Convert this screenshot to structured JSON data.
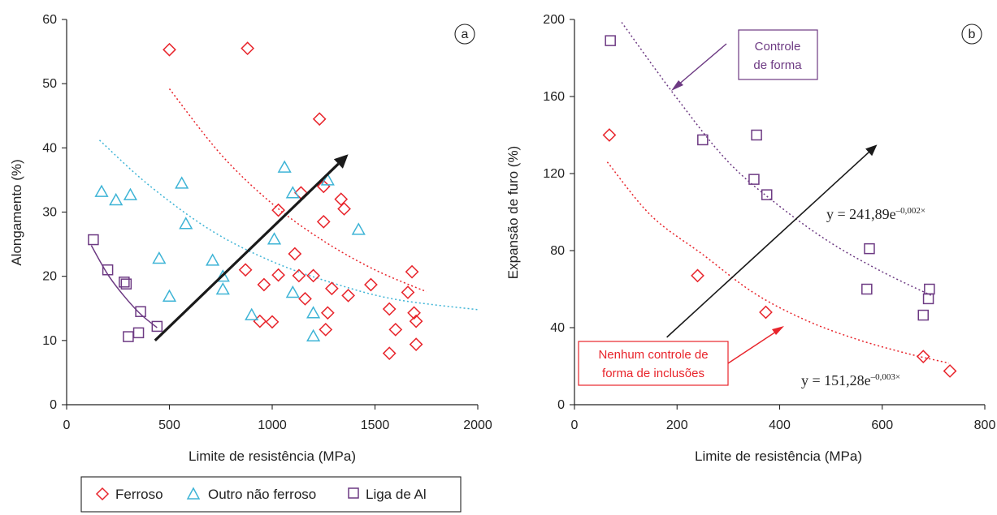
{
  "chart_data": [
    {
      "id": "a",
      "panel_label": "a",
      "type": "scatter",
      "xlabel": "Limite de resistência (MPa)",
      "ylabel": "Alongamento (%)",
      "xlim": [
        0,
        2000
      ],
      "ylim": [
        0,
        60
      ],
      "xticks": [
        0,
        500,
        1000,
        1500,
        2000
      ],
      "yticks": [
        0,
        10,
        20,
        30,
        40,
        50,
        60
      ],
      "series": [
        {
          "name": "Ferroso",
          "marker": "diamond",
          "color": "#e8242b",
          "points": [
            [
              500,
              55.3
            ],
            [
              880,
              55.5
            ],
            [
              1230,
              44.5
            ],
            [
              1140,
              33
            ],
            [
              1030,
              30.3
            ],
            [
              1250,
              34
            ],
            [
              1335,
              32
            ],
            [
              1350,
              30.5
            ],
            [
              1250,
              28.5
            ],
            [
              1110,
              23.5
            ],
            [
              870,
              21
            ],
            [
              960,
              18.7
            ],
            [
              1030,
              20.2
            ],
            [
              1130,
              20.1
            ],
            [
              1200,
              20.1
            ],
            [
              1160,
              16.5
            ],
            [
              1290,
              18.1
            ],
            [
              1370,
              17
            ],
            [
              1270,
              14.3
            ],
            [
              1480,
              18.7
            ],
            [
              1660,
              17.5
            ],
            [
              1680,
              20.7
            ],
            [
              1690,
              14.3
            ],
            [
              1700,
              13
            ],
            [
              1570,
              14.9
            ],
            [
              1600,
              11.7
            ],
            [
              1260,
              11.7
            ],
            [
              940,
              13
            ],
            [
              1000,
              12.9
            ],
            [
              1570,
              8
            ],
            [
              1700,
              9.4
            ]
          ]
        },
        {
          "name": "Outro não ferroso",
          "marker": "triangle",
          "color": "#3eb4d6",
          "points": [
            [
              170,
              33.2
            ],
            [
              240,
              31.9
            ],
            [
              310,
              32.7
            ],
            [
              560,
              34.5
            ],
            [
              580,
              28.2
            ],
            [
              450,
              22.8
            ],
            [
              500,
              16.9
            ],
            [
              710,
              22.5
            ],
            [
              760,
              20
            ],
            [
              760,
              18
            ],
            [
              900,
              14
            ],
            [
              1010,
              25.8
            ],
            [
              1060,
              37
            ],
            [
              1100,
              33
            ],
            [
              1270,
              35
            ],
            [
              1100,
              17.5
            ],
            [
              1200,
              14.3
            ],
            [
              1200,
              10.7
            ],
            [
              1420,
              27.3
            ]
          ]
        },
        {
          "name": "Liga de Al",
          "marker": "square",
          "color": "#6d3a83",
          "points": [
            [
              130,
              25.7
            ],
            [
              200,
              21
            ],
            [
              280,
              19.1
            ],
            [
              290,
              18.8
            ],
            [
              360,
              14.5
            ],
            [
              440,
              12.2
            ],
            [
              300,
              10.6
            ],
            [
              350,
              11.2
            ]
          ]
        }
      ],
      "trendlines": [
        {
          "series": "Ferroso",
          "color": "#e8242b",
          "points": [
            [
              500,
              49.2
            ],
            [
              750,
              39
            ],
            [
              1000,
              31.3
            ],
            [
              1250,
              25.5
            ],
            [
              1500,
              21
            ],
            [
              1750,
              17.6
            ]
          ]
        },
        {
          "series": "Outro não ferroso",
          "color": "#3eb4d6",
          "points": [
            [
              160,
              41.2
            ],
            [
              400,
              34.2
            ],
            [
              700,
              27.2
            ],
            [
              1000,
              22.3
            ],
            [
              1300,
              18.9
            ],
            [
              1600,
              16.4
            ],
            [
              2000,
              14.8
            ]
          ]
        },
        {
          "series": "Liga de Al",
          "color": "#6d3a83",
          "points": [
            [
              120,
              24.8
            ],
            [
              200,
              20.3
            ],
            [
              280,
              16.9
            ],
            [
              360,
              14.1
            ],
            [
              440,
              12
            ]
          ]
        }
      ],
      "arrow": {
        "from": [
          430,
          10
        ],
        "to": [
          1370,
          39
        ],
        "color": "#1a1a1a"
      }
    },
    {
      "id": "b",
      "panel_label": "b",
      "type": "scatter",
      "xlabel": "Limite de resistência (MPa)",
      "ylabel": "Expansão de furo (%)",
      "xlim": [
        0,
        800
      ],
      "ylim": [
        0,
        200
      ],
      "xticks": [
        0,
        200,
        400,
        600,
        800
      ],
      "yticks": [
        0,
        40,
        80,
        120,
        160,
        200
      ],
      "series": [
        {
          "marker": "square",
          "color": "#6d3a83",
          "points": [
            [
              70,
              189
            ],
            [
              250,
              137.5
            ],
            [
              350,
              117
            ],
            [
              355,
              140
            ],
            [
              375,
              109
            ],
            [
              570,
              60
            ],
            [
              575,
              81
            ],
            [
              680,
              46.5
            ],
            [
              690,
              55
            ],
            [
              692,
              60
            ]
          ]
        },
        {
          "marker": "diamond",
          "color": "#e8242b",
          "points": [
            [
              68,
              140
            ],
            [
              240,
              67
            ],
            [
              373,
              48
            ],
            [
              680,
              25
            ],
            [
              732,
              17.5
            ]
          ]
        }
      ],
      "trendlines": [
        {
          "color": "#6d3a83",
          "points": [
            [
              92,
              198.5
            ],
            [
              200,
              159
            ],
            [
              300,
              126
            ],
            [
              400,
              103
            ],
            [
              500,
              84
            ],
            [
              600,
              69
            ],
            [
              695,
              56.8
            ]
          ]
        },
        {
          "color": "#e8242b",
          "points": [
            [
              64,
              126
            ],
            [
              150,
              98
            ],
            [
              250,
              78
            ],
            [
              350,
              58
            ],
            [
              450,
              44
            ],
            [
              550,
              34
            ],
            [
              650,
              26.5
            ],
            [
              730,
              21.6
            ]
          ]
        }
      ],
      "arrow": {
        "from": [
          180,
          35
        ],
        "to": [
          590,
          135
        ],
        "color": "#1a1a1a"
      },
      "annotations": {
        "shape_control_line1": "Controle",
        "shape_control_line2": "de forma",
        "no_control_line1": "Nenhum controle de",
        "no_control_line2": "forma de inclusões",
        "eq_upper_prefix": "y = 241,89e",
        "eq_upper_exp": "–0,002×",
        "eq_lower_prefix": "y = 151,28e",
        "eq_lower_exp": "–0,003×"
      }
    }
  ],
  "legend": {
    "placement": "bottom-left",
    "items": [
      {
        "label": "Ferroso",
        "marker": "diamond",
        "color": "#e8242b"
      },
      {
        "label": "Outro não ferroso",
        "marker": "triangle",
        "color": "#3eb4d6"
      },
      {
        "label": "Liga de Al",
        "marker": "square",
        "color": "#6d3a83"
      }
    ]
  }
}
